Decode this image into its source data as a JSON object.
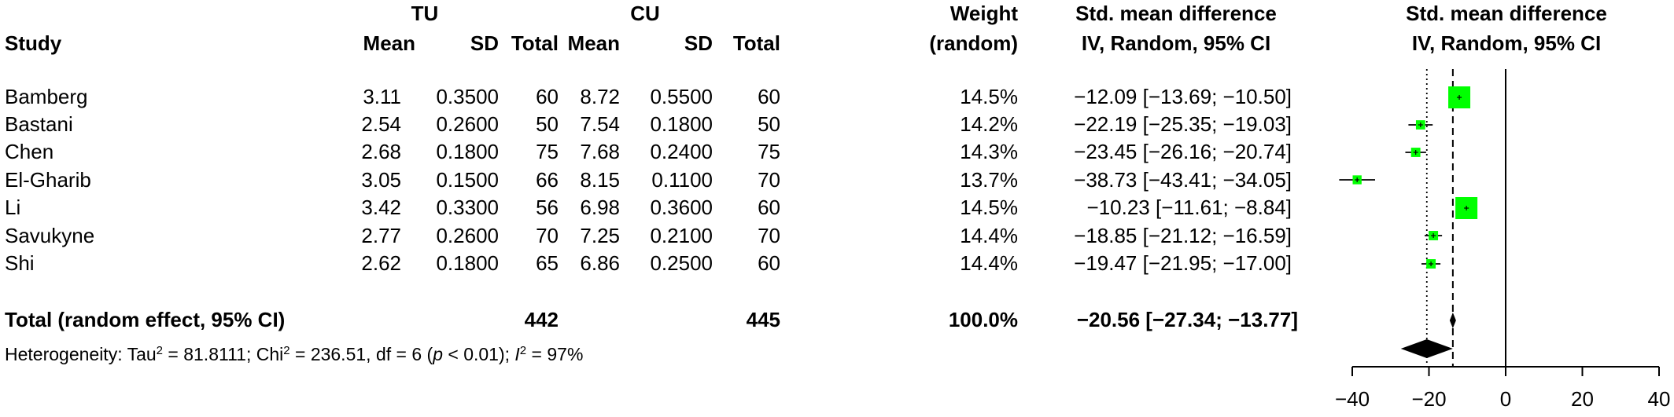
{
  "headers": {
    "group_tu": "TU",
    "group_cu": "CU",
    "study": "Study",
    "mean": "Mean",
    "sd": "SD",
    "total": "Total",
    "weight_line1": "Weight",
    "weight_line2": "(random)",
    "smd_line1": "Std. mean difference",
    "smd_line2": "IV, Random, 95% CI",
    "plot_line1": "Std. mean difference",
    "plot_line2": "IV, Random, 95% CI"
  },
  "studies": [
    {
      "name": "Bamberg",
      "tu_mean": "3.11",
      "tu_sd": "0.3500",
      "tu_total": "60",
      "cu_mean": "8.72",
      "cu_sd": "0.5500",
      "cu_total": "60",
      "weight": "14.5%",
      "ci_text": "−12.09 [−13.69; −10.50]"
    },
    {
      "name": "Bastani",
      "tu_mean": "2.54",
      "tu_sd": "0.2600",
      "tu_total": "50",
      "cu_mean": "7.54",
      "cu_sd": "0.1800",
      "cu_total": "50",
      "weight": "14.2%",
      "ci_text": "−22.19 [−25.35; −19.03]"
    },
    {
      "name": "Chen",
      "tu_mean": "2.68",
      "tu_sd": "0.1800",
      "tu_total": "75",
      "cu_mean": "7.68",
      "cu_sd": "0.2400",
      "cu_total": "75",
      "weight": "14.3%",
      "ci_text": "−23.45 [−26.16; −20.74]"
    },
    {
      "name": "El-Gharib",
      "tu_mean": "3.05",
      "tu_sd": "0.1500",
      "tu_total": "66",
      "cu_mean": "8.15",
      "cu_sd": "0.1100",
      "cu_total": "70",
      "weight": "13.7%",
      "ci_text": "−38.73 [−43.41; −34.05]"
    },
    {
      "name": "Li",
      "tu_mean": "3.42",
      "tu_sd": "0.3300",
      "tu_total": "56",
      "cu_mean": "6.98",
      "cu_sd": "0.3600",
      "cu_total": "60",
      "weight": "14.5%",
      "ci_text": "−10.23 [−11.61;  −8.84]"
    },
    {
      "name": "Savukyne",
      "tu_mean": "2.77",
      "tu_sd": "0.2600",
      "tu_total": "70",
      "cu_mean": "7.25",
      "cu_sd": "0.2100",
      "cu_total": "70",
      "weight": "14.4%",
      "ci_text": "−18.85 [−21.12; −16.59]"
    },
    {
      "name": "Shi",
      "tu_mean": "2.62",
      "tu_sd": "0.1800",
      "tu_total": "65",
      "cu_mean": "6.86",
      "cu_sd": "0.2500",
      "cu_total": "60",
      "weight": "14.4%",
      "ci_text": "−19.47 [−21.95; −17.00]"
    }
  ],
  "total_row": {
    "label": "Total (random effect, 95% CI)",
    "tu_total": "442",
    "cu_total": "445",
    "weight": "100.0%",
    "ci_text": "−20.56 [−27.34; −13.77]"
  },
  "heterogeneity": {
    "prefix": "Heterogeneity: Tau",
    "tau2": "81.8111",
    "chi_label": "; Chi",
    "chi2": "236.51",
    "df_text": ", df = 6 (",
    "p_label": "p",
    "p_text": " < 0.01); ",
    "i_label": "I",
    "i2": "97%"
  },
  "chart_data": {
    "type": "forest",
    "xlim": [
      -40,
      40
    ],
    "xticks": [
      -40,
      -20,
      0,
      20,
      40
    ],
    "xtick_labels": [
      "−40",
      "−20",
      "0",
      "20",
      "40"
    ],
    "studies": [
      {
        "name": "Bamberg",
        "est": -12.09,
        "lo": -13.69,
        "hi": -10.5,
        "weight": 14.5
      },
      {
        "name": "Bastani",
        "est": -22.19,
        "lo": -25.35,
        "hi": -19.03,
        "weight": 14.2
      },
      {
        "name": "Chen",
        "est": -23.45,
        "lo": -26.16,
        "hi": -20.74,
        "weight": 14.3
      },
      {
        "name": "El-Gharib",
        "est": -38.73,
        "lo": -43.41,
        "hi": -34.05,
        "weight": 13.7
      },
      {
        "name": "Li",
        "est": -10.23,
        "lo": -11.61,
        "hi": -8.84,
        "weight": 14.5
      },
      {
        "name": "Savukyne",
        "est": -18.85,
        "lo": -21.12,
        "hi": -16.59,
        "weight": 14.4
      },
      {
        "name": "Shi",
        "est": -19.47,
        "lo": -21.95,
        "hi": -17.0,
        "weight": 14.4
      }
    ],
    "pooled": {
      "est": -20.56,
      "lo": -27.34,
      "hi": -13.77
    },
    "prediction_marker": -13.77,
    "square_color": "#00ff00",
    "null_line": 0
  }
}
